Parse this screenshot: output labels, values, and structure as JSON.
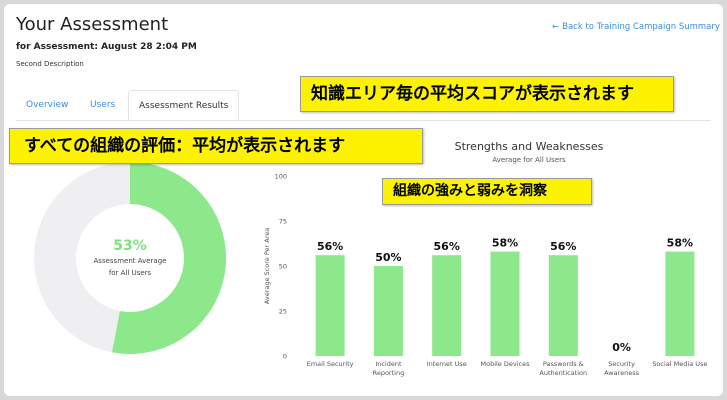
{
  "header": {
    "title": "Your Assessment",
    "subtitle": "for Assessment: August 28 2:04 PM",
    "description": "Second Description",
    "back_link": "Back to Training Campaign Summary",
    "back_icon": "←"
  },
  "tabs": [
    {
      "label": "Overview",
      "active": false
    },
    {
      "label": "Users",
      "active": false
    },
    {
      "label": "Assessment Results",
      "active": true
    }
  ],
  "callouts": {
    "area_average": "知識エリア毎の平均スコアが表示されます",
    "org_rating": "すべての組織の評価：平均が表示されます",
    "strengths": "組織の強みと弱みを洞察"
  },
  "donut": {
    "percent_label": "53%",
    "value": 53,
    "caption_line1": "Assessment Average",
    "caption_line2": "for All Users",
    "fill_color": "#8de78b",
    "track_color": "#efeff1"
  },
  "chart_data": {
    "type": "bar",
    "title": "Strengths and Weaknesses",
    "subtitle": "Average for All Users",
    "ylabel": "Average Score Per Area",
    "xlabel": "",
    "ylim": [
      0,
      100
    ],
    "yticks": [
      0,
      25,
      50,
      75,
      100
    ],
    "categories": [
      [
        "Email Security"
      ],
      [
        "Incident",
        "Reporting"
      ],
      [
        "Internet Use"
      ],
      [
        "Mobile Devices"
      ],
      [
        "Passwords &",
        "Authentication"
      ],
      [
        "Security",
        "Awareness"
      ],
      [
        "Social Media Use"
      ]
    ],
    "values": [
      56,
      50,
      56,
      58,
      56,
      0,
      58
    ],
    "value_labels": [
      "56%",
      "50%",
      "56%",
      "58%",
      "56%",
      "0%",
      "58%"
    ],
    "bar_color": "#8de78b",
    "grid": false
  }
}
